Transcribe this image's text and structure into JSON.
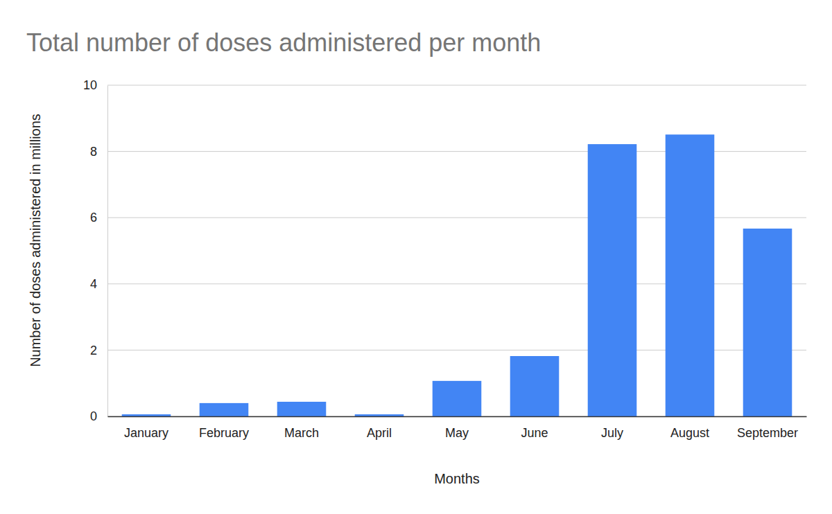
{
  "chart_data": {
    "type": "bar",
    "title": "Total number of doses administered per month",
    "x_label": "Months",
    "y_label": "Number of doses administered in millions",
    "categories": [
      "January",
      "February",
      "March",
      "April",
      "May",
      "June",
      "July",
      "August",
      "September"
    ],
    "values": [
      0.06,
      0.4,
      0.44,
      0.06,
      1.07,
      1.82,
      8.22,
      8.51,
      5.67
    ],
    "color": "#4285f4",
    "ylim": [
      0,
      10
    ],
    "yticks": [
      0,
      2,
      4,
      6,
      8,
      10
    ],
    "grid": true
  }
}
